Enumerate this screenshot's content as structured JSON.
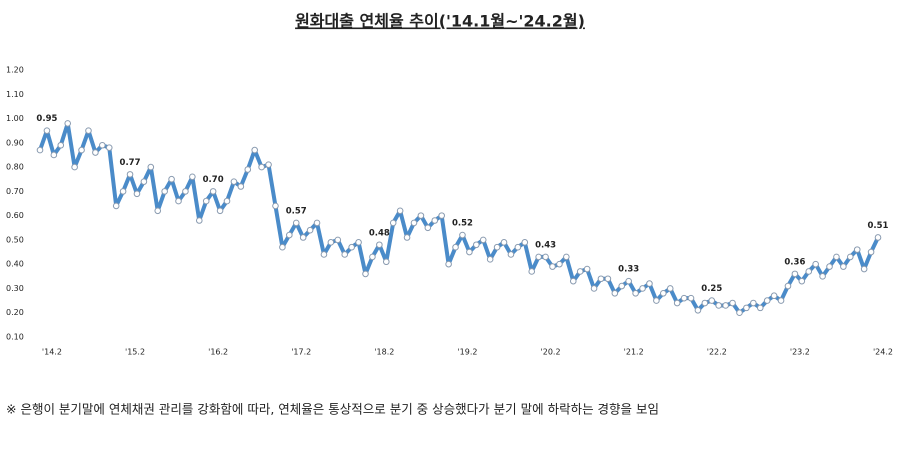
{
  "chart_data": {
    "type": "line",
    "title": "원화대출 연체율 추이('14.1월~'24.2월)",
    "footnote": "※ 은행이 분기말에 연체채권 관리를 강화함에 따라, 연체율은 통상적으로 분기 중 상승했다가 분기 말에 하락하는 경향을 보임",
    "categories": [
      null,
      "'14.2",
      null,
      null,
      null,
      null,
      null,
      null,
      null,
      null,
      null,
      null,
      null,
      "'15.2",
      null,
      null,
      null,
      null,
      null,
      null,
      null,
      null,
      null,
      null,
      null,
      "'16.2",
      null,
      null,
      null,
      null,
      null,
      null,
      null,
      null,
      null,
      null,
      null,
      "'17.2",
      null,
      null,
      null,
      null,
      null,
      null,
      null,
      null,
      null,
      null,
      null,
      "'18.2",
      null,
      null,
      null,
      null,
      null,
      null,
      null,
      null,
      null,
      null,
      null,
      "'19.2",
      null,
      null,
      null,
      null,
      null,
      null,
      null,
      null,
      null,
      null,
      null,
      "'20.2",
      null,
      null,
      null,
      null,
      null,
      null,
      null,
      null,
      null,
      null,
      null,
      "'21.2",
      null,
      null,
      null,
      null,
      null,
      null,
      null,
      null,
      null,
      null,
      null,
      "'22.2",
      null,
      null,
      null,
      null,
      null,
      null,
      null,
      null,
      null,
      null,
      null,
      "'23.2",
      null,
      null,
      null,
      null,
      null,
      null,
      null,
      null,
      null,
      null,
      null,
      "'24.2"
    ],
    "values": [
      0.87,
      0.95,
      0.85,
      0.89,
      0.98,
      0.8,
      0.87,
      0.95,
      0.86,
      0.89,
      0.88,
      0.64,
      0.7,
      0.77,
      0.69,
      0.74,
      0.8,
      0.62,
      0.7,
      0.75,
      0.66,
      0.7,
      0.76,
      0.58,
      0.66,
      0.7,
      0.62,
      0.66,
      0.74,
      0.72,
      0.79,
      0.87,
      0.8,
      0.81,
      0.64,
      0.47,
      0.52,
      0.57,
      0.51,
      0.54,
      0.57,
      0.44,
      0.49,
      0.5,
      0.44,
      0.47,
      0.49,
      0.36,
      0.43,
      0.48,
      0.41,
      0.57,
      0.62,
      0.51,
      0.57,
      0.6,
      0.55,
      0.58,
      0.6,
      0.4,
      0.47,
      0.52,
      0.45,
      0.48,
      0.5,
      0.42,
      0.47,
      0.49,
      0.44,
      0.47,
      0.49,
      0.37,
      0.43,
      0.43,
      0.39,
      0.4,
      0.43,
      0.33,
      0.37,
      0.38,
      0.3,
      0.34,
      0.34,
      0.28,
      0.31,
      0.33,
      0.28,
      0.3,
      0.32,
      0.25,
      0.28,
      0.3,
      0.24,
      0.26,
      0.26,
      0.21,
      0.24,
      0.25,
      0.23,
      0.23,
      0.24,
      0.2,
      0.22,
      0.24,
      0.22,
      0.25,
      0.27,
      0.25,
      0.31,
      0.36,
      0.33,
      0.37,
      0.4,
      0.35,
      0.39,
      0.43,
      0.39,
      0.43,
      0.46,
      0.38,
      0.45,
      0.51
    ],
    "value_labels": [
      null,
      "0.95",
      null,
      null,
      null,
      null,
      null,
      null,
      null,
      null,
      null,
      null,
      null,
      "0.77",
      null,
      null,
      null,
      null,
      null,
      null,
      null,
      null,
      null,
      null,
      null,
      "0.70",
      null,
      null,
      null,
      null,
      null,
      null,
      null,
      null,
      null,
      null,
      null,
      "0.57",
      null,
      null,
      null,
      null,
      null,
      null,
      null,
      null,
      null,
      null,
      null,
      "0.48",
      null,
      null,
      null,
      null,
      null,
      null,
      null,
      null,
      null,
      null,
      null,
      "0.52",
      null,
      null,
      null,
      null,
      null,
      null,
      null,
      null,
      null,
      null,
      null,
      "0.43",
      null,
      null,
      null,
      null,
      null,
      null,
      null,
      null,
      null,
      null,
      null,
      "0.33",
      null,
      null,
      null,
      null,
      null,
      null,
      null,
      null,
      null,
      null,
      null,
      "0.25",
      null,
      null,
      null,
      null,
      null,
      null,
      null,
      null,
      null,
      null,
      null,
      "0.36",
      null,
      null,
      null,
      null,
      null,
      null,
      null,
      null,
      null,
      null,
      null,
      "0.51"
    ],
    "color": "#4a8bc9",
    "ylim": [
      0.1,
      1.2
    ],
    "yticks": [
      {
        "value": 0.1,
        "label": "0.10"
      },
      {
        "value": 0.2,
        "label": "0.20"
      },
      {
        "value": 0.3,
        "label": "0.30"
      },
      {
        "value": 0.4,
        "label": "0.40"
      },
      {
        "value": 0.5,
        "label": "0.50"
      },
      {
        "value": 0.6,
        "label": "0.60"
      },
      {
        "value": 0.7,
        "label": "0.70"
      },
      {
        "value": 0.8,
        "label": "0.80"
      },
      {
        "value": 0.9,
        "label": "0.90"
      },
      {
        "value": 1.0,
        "label": "1.00"
      },
      {
        "value": 1.1,
        "label": "1.10"
      },
      {
        "value": 1.2,
        "label": "1.20"
      }
    ],
    "grid": false
  }
}
